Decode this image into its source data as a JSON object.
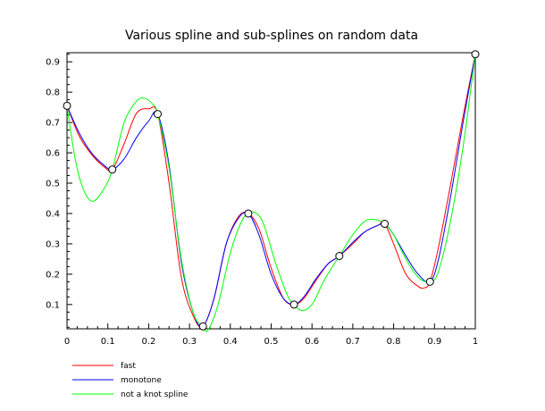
{
  "chart_data": {
    "type": "line",
    "title": "Various spline and sub-splines on random data",
    "xlabel": "",
    "ylabel": "",
    "xlim": [
      0,
      1
    ],
    "ylim": [
      0.02,
      0.93
    ],
    "grid": false,
    "legend_position": "bottom-left",
    "x_ticks": [
      0,
      0.1,
      0.2,
      0.3,
      0.4,
      0.5,
      0.6,
      0.7,
      0.8,
      0.9,
      1
    ],
    "x_tick_labels": [
      "0",
      "0.1",
      "0.2",
      "0.3",
      "0.4",
      "0.5",
      "0.6",
      "0.7",
      "0.8",
      "0.9",
      "1"
    ],
    "y_ticks": [
      0.1,
      0.2,
      0.3,
      0.4,
      0.5,
      0.6,
      0.7,
      0.8,
      0.9
    ],
    "y_tick_labels": [
      "0.1",
      "0.2",
      "0.3",
      "0.4",
      "0.5",
      "0.6",
      "0.7",
      "0.8",
      "0.9"
    ],
    "data_points": {
      "x": [
        0,
        0.111,
        0.222,
        0.333,
        0.444,
        0.556,
        0.667,
        0.778,
        0.889,
        1
      ],
      "y": [
        0.755,
        0.545,
        0.728,
        0.028,
        0.4,
        0.1,
        0.26,
        0.366,
        0.175,
        0.925
      ]
    },
    "series": [
      {
        "name": "fast",
        "color": "#ff0000",
        "x": [
          0,
          0.03,
          0.06,
          0.09,
          0.111,
          0.14,
          0.17,
          0.2,
          0.222,
          0.25,
          0.28,
          0.31,
          0.333,
          0.36,
          0.39,
          0.42,
          0.444,
          0.47,
          0.5,
          0.53,
          0.556,
          0.58,
          0.61,
          0.64,
          0.667,
          0.7,
          0.73,
          0.76,
          0.778,
          0.8,
          0.83,
          0.86,
          0.875,
          0.889,
          0.91,
          0.94,
          0.97,
          1
        ],
        "y": [
          0.755,
          0.655,
          0.595,
          0.555,
          0.545,
          0.63,
          0.73,
          0.745,
          0.728,
          0.5,
          0.19,
          0.06,
          0.028,
          0.12,
          0.3,
          0.39,
          0.4,
          0.35,
          0.22,
          0.12,
          0.1,
          0.12,
          0.18,
          0.235,
          0.26,
          0.3,
          0.34,
          0.36,
          0.366,
          0.3,
          0.2,
          0.16,
          0.155,
          0.175,
          0.29,
          0.5,
          0.72,
          0.925
        ]
      },
      {
        "name": "monotone",
        "color": "#0000ff",
        "x": [
          0,
          0.03,
          0.06,
          0.09,
          0.111,
          0.14,
          0.17,
          0.2,
          0.222,
          0.25,
          0.28,
          0.31,
          0.333,
          0.36,
          0.39,
          0.42,
          0.444,
          0.47,
          0.5,
          0.53,
          0.556,
          0.58,
          0.61,
          0.64,
          0.667,
          0.7,
          0.73,
          0.76,
          0.778,
          0.8,
          0.83,
          0.86,
          0.889,
          0.91,
          0.94,
          0.97,
          1
        ],
        "y": [
          0.755,
          0.665,
          0.6,
          0.56,
          0.545,
          0.58,
          0.65,
          0.705,
          0.728,
          0.56,
          0.24,
          0.07,
          0.028,
          0.12,
          0.3,
          0.385,
          0.4,
          0.33,
          0.2,
          0.12,
          0.1,
          0.125,
          0.185,
          0.235,
          0.26,
          0.305,
          0.34,
          0.36,
          0.366,
          0.33,
          0.26,
          0.2,
          0.175,
          0.25,
          0.46,
          0.7,
          0.925
        ]
      },
      {
        "name": "not a knot spline",
        "color": "#00ff00",
        "x": [
          0,
          0.02,
          0.04,
          0.063,
          0.09,
          0.111,
          0.14,
          0.17,
          0.19,
          0.21,
          0.222,
          0.25,
          0.28,
          0.31,
          0.333,
          0.345,
          0.37,
          0.4,
          0.43,
          0.455,
          0.48,
          0.51,
          0.54,
          0.556,
          0.575,
          0.6,
          0.63,
          0.667,
          0.7,
          0.73,
          0.755,
          0.778,
          0.8,
          0.83,
          0.86,
          0.889,
          0.91,
          0.94,
          0.97,
          1
        ],
        "y": [
          0.755,
          0.58,
          0.48,
          0.44,
          0.48,
          0.545,
          0.7,
          0.77,
          0.78,
          0.76,
          0.728,
          0.55,
          0.25,
          0.07,
          0.028,
          0.015,
          0.1,
          0.27,
          0.38,
          0.405,
          0.37,
          0.24,
          0.13,
          0.1,
          0.08,
          0.1,
          0.18,
          0.26,
          0.33,
          0.375,
          0.38,
          0.366,
          0.33,
          0.25,
          0.19,
          0.175,
          0.21,
          0.38,
          0.62,
          0.925
        ]
      }
    ]
  }
}
